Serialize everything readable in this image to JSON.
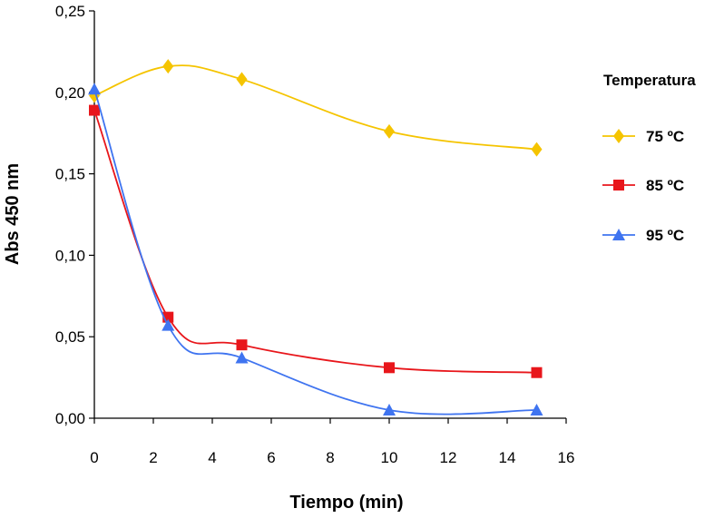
{
  "chart_data": {
    "type": "line",
    "xlabel": "Tiempo (min)",
    "ylabel": "Abs 450 nm",
    "xlim": [
      0,
      16
    ],
    "ylim": [
      0,
      0.25
    ],
    "xticks": [
      0,
      2,
      4,
      6,
      8,
      10,
      12,
      14,
      16
    ],
    "xtick_labels": [
      "0",
      "2",
      "4",
      "6",
      "8",
      "10",
      "12",
      "14",
      "16"
    ],
    "yticks": [
      0,
      0.05,
      0.1,
      0.15,
      0.2,
      0.25
    ],
    "ytick_labels": [
      "0,00",
      "0,05",
      "0,10",
      "0,15",
      "0,20",
      "0,25"
    ],
    "grid": false,
    "legend": {
      "title": "Temperatura",
      "position": "right"
    },
    "series": [
      {
        "name": "75 ºC",
        "color": "#f5c400",
        "marker": "diamond",
        "x": [
          0,
          2.5,
          5,
          10,
          15
        ],
        "y": [
          0.198,
          0.216,
          0.208,
          0.176,
          0.165
        ]
      },
      {
        "name": "85 ºC",
        "color": "#e8161b",
        "marker": "square",
        "x": [
          0,
          2.5,
          5,
          10,
          15
        ],
        "y": [
          0.189,
          0.062,
          0.045,
          0.031,
          0.028
        ]
      },
      {
        "name": "95 ºC",
        "color": "#3f74f0",
        "marker": "triangle",
        "x": [
          0,
          2.5,
          5,
          10,
          15
        ],
        "y": [
          0.202,
          0.057,
          0.037,
          0.005,
          0.005
        ]
      }
    ]
  }
}
